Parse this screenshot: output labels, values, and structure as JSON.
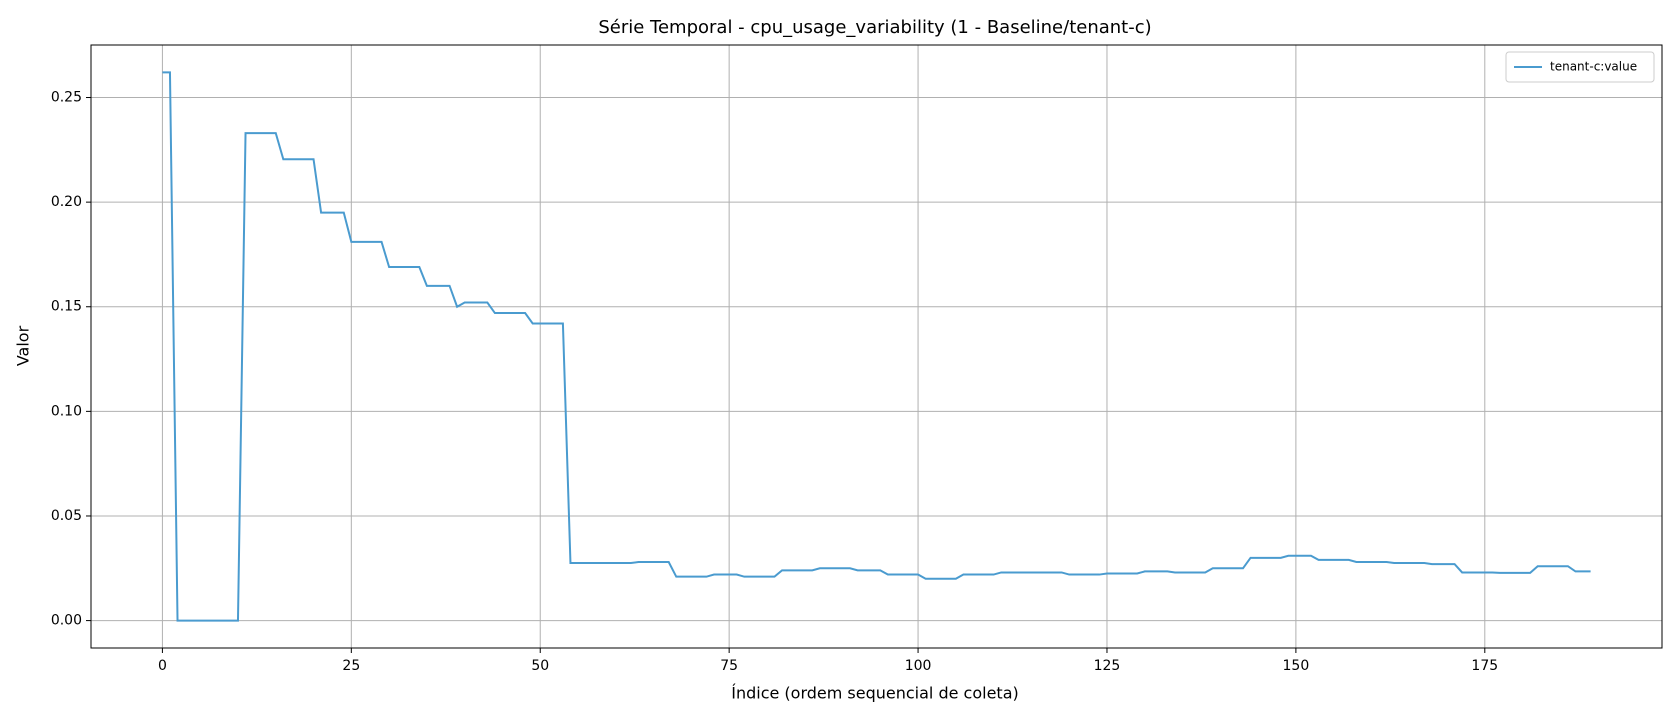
{
  "chart_data": {
    "type": "line",
    "title": "Série Temporal - cpu_usage_variability (1 - Baseline/tenant-c)",
    "x_label": "Índice (ordem sequencial de coleta)",
    "y_label": "Valor",
    "x": [
      0,
      1,
      2,
      3,
      4,
      5,
      6,
      7,
      8,
      9,
      10,
      11,
      12,
      13,
      14,
      15,
      16,
      17,
      18,
      19,
      20,
      21,
      22,
      23,
      24,
      25,
      26,
      27,
      28,
      29,
      30,
      31,
      32,
      33,
      34,
      35,
      36,
      37,
      38,
      39,
      40,
      41,
      42,
      43,
      44,
      45,
      46,
      47,
      48,
      49,
      50,
      51,
      52,
      53,
      54,
      55,
      56,
      57,
      58,
      59,
      60,
      61,
      62,
      63,
      64,
      65,
      66,
      67,
      68,
      69,
      70,
      71,
      72,
      73,
      74,
      75,
      76,
      77,
      78,
      79,
      80,
      81,
      82,
      83,
      84,
      85,
      86,
      87,
      88,
      89,
      90,
      91,
      92,
      93,
      94,
      95,
      96,
      97,
      98,
      99,
      100,
      101,
      102,
      103,
      104,
      105,
      106,
      107,
      108,
      109,
      110,
      111,
      112,
      113,
      114,
      115,
      116,
      117,
      118,
      119,
      120,
      121,
      122,
      123,
      124,
      125,
      126,
      127,
      128,
      129,
      130,
      131,
      132,
      133,
      134,
      135,
      136,
      137,
      138,
      139,
      140,
      141,
      142,
      143,
      144,
      145,
      146,
      147,
      148,
      149,
      150,
      151,
      152,
      153,
      154,
      155,
      156,
      157,
      158,
      159,
      160,
      161,
      162,
      163,
      164,
      165,
      166,
      167,
      168,
      169,
      170,
      171,
      172,
      173,
      174,
      175,
      176,
      177,
      178,
      179,
      180,
      181,
      182,
      183,
      184,
      185,
      186,
      187,
      188,
      189
    ],
    "series": [
      {
        "name": "tenant-c:value",
        "color": "#4a9bcf",
        "values": [
          0.262,
          0.262,
          0,
          0,
          0,
          0,
          0,
          0,
          0,
          0,
          0,
          0.233,
          0.233,
          0.233,
          0.233,
          0.233,
          0.2205,
          0.2205,
          0.2205,
          0.2205,
          0.2205,
          0.195,
          0.195,
          0.195,
          0.195,
          0.181,
          0.181,
          0.181,
          0.181,
          0.181,
          0.169,
          0.169,
          0.169,
          0.169,
          0.169,
          0.16,
          0.16,
          0.16,
          0.16,
          0.15,
          0.152,
          0.152,
          0.152,
          0.152,
          0.147,
          0.147,
          0.147,
          0.147,
          0.147,
          0.142,
          0.142,
          0.142,
          0.142,
          0.142,
          0.0275,
          0.0275,
          0.0275,
          0.0275,
          0.0275,
          0.0275,
          0.0275,
          0.0275,
          0.0275,
          0.028,
          0.028,
          0.028,
          0.028,
          0.028,
          0.021,
          0.021,
          0.021,
          0.021,
          0.021,
          0.022,
          0.022,
          0.022,
          0.022,
          0.021,
          0.021,
          0.021,
          0.021,
          0.021,
          0.024,
          0.024,
          0.024,
          0.024,
          0.024,
          0.025,
          0.025,
          0.025,
          0.025,
          0.025,
          0.024,
          0.024,
          0.024,
          0.024,
          0.022,
          0.022,
          0.022,
          0.022,
          0.022,
          0.02,
          0.02,
          0.02,
          0.02,
          0.02,
          0.022,
          0.022,
          0.022,
          0.022,
          0.022,
          0.023,
          0.023,
          0.023,
          0.023,
          0.023,
          0.023,
          0.023,
          0.023,
          0.023,
          0.022,
          0.022,
          0.022,
          0.022,
          0.022,
          0.0225,
          0.0225,
          0.0225,
          0.0225,
          0.0225,
          0.0235,
          0.0235,
          0.0235,
          0.0235,
          0.023,
          0.023,
          0.023,
          0.023,
          0.023,
          0.025,
          0.025,
          0.025,
          0.025,
          0.025,
          0.03,
          0.03,
          0.03,
          0.03,
          0.03,
          0.031,
          0.031,
          0.031,
          0.031,
          0.029,
          0.029,
          0.029,
          0.029,
          0.029,
          0.028,
          0.028,
          0.028,
          0.028,
          0.028,
          0.0275,
          0.0275,
          0.0275,
          0.0275,
          0.0275,
          0.027,
          0.027,
          0.027,
          0.027,
          0.023,
          0.023,
          0.023,
          0.023,
          0.023,
          0.0228,
          0.0228,
          0.0228,
          0.0228,
          0.0228,
          0.026,
          0.026,
          0.026,
          0.026,
          0.026,
          0.0235,
          0.0235,
          0.0235
        ]
      }
    ],
    "xlim": [
      -9.45,
      198.45
    ],
    "ylim": [
      -0.0131,
      0.2751
    ],
    "xticks": [
      0,
      25,
      50,
      75,
      100,
      125,
      150,
      175
    ],
    "yticks": [
      {
        "value": 0,
        "label": "0.00"
      },
      {
        "value": 0.05,
        "label": "0.05"
      },
      {
        "value": 0.1,
        "label": "0.10"
      },
      {
        "value": 0.15,
        "label": "0.15"
      },
      {
        "value": 0.2,
        "label": "0.20"
      },
      {
        "value": 0.25,
        "label": "0.25"
      }
    ],
    "grid": true,
    "legend": "upper-right"
  }
}
